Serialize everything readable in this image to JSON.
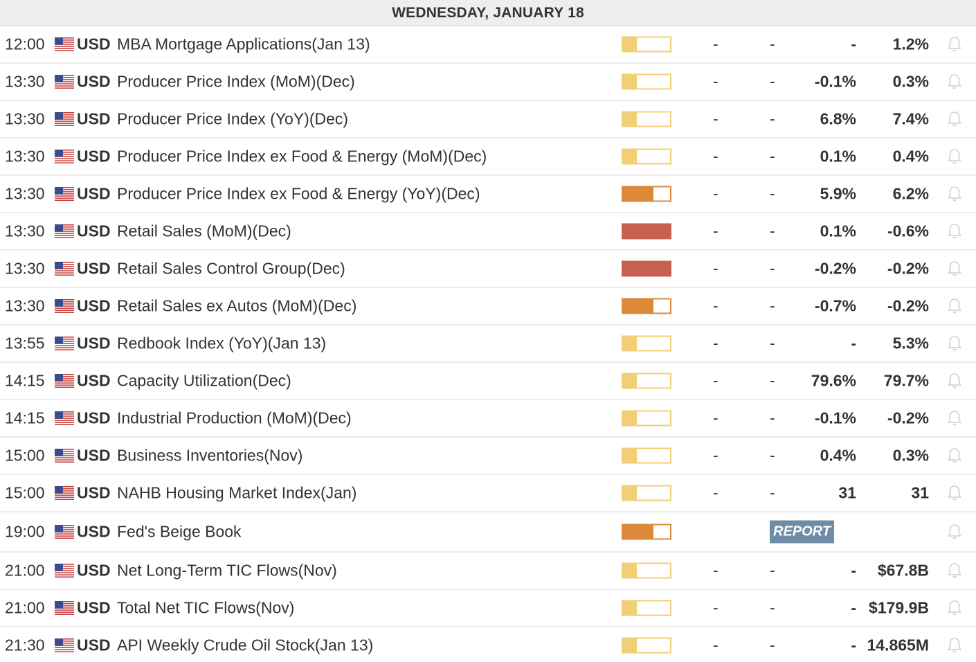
{
  "header": {
    "date": "WEDNESDAY, JANUARY 18"
  },
  "colors": {
    "low": "#f2cf76",
    "medium": "#dc8a3a",
    "high": "#c8604f",
    "report": "#6f8ca7"
  },
  "events": [
    {
      "time": "12:00",
      "currency": "USD",
      "event": "MBA Mortgage Applications(Jan 13)",
      "impact": "low",
      "actual": "-",
      "forecast": "-",
      "previous": "-",
      "prior": "1.2%"
    },
    {
      "time": "13:30",
      "currency": "USD",
      "event": "Producer Price Index (MoM)(Dec)",
      "impact": "low",
      "actual": "-",
      "forecast": "-",
      "previous": "-0.1%",
      "prior": "0.3%"
    },
    {
      "time": "13:30",
      "currency": "USD",
      "event": "Producer Price Index (YoY)(Dec)",
      "impact": "low",
      "actual": "-",
      "forecast": "-",
      "previous": "6.8%",
      "prior": "7.4%"
    },
    {
      "time": "13:30",
      "currency": "USD",
      "event": "Producer Price Index ex Food & Energy (MoM)(Dec)",
      "impact": "low",
      "actual": "-",
      "forecast": "-",
      "previous": "0.1%",
      "prior": "0.4%"
    },
    {
      "time": "13:30",
      "currency": "USD",
      "event": "Producer Price Index ex Food & Energy (YoY)(Dec)",
      "impact": "medium",
      "actual": "-",
      "forecast": "-",
      "previous": "5.9%",
      "prior": "6.2%"
    },
    {
      "time": "13:30",
      "currency": "USD",
      "event": "Retail Sales (MoM)(Dec)",
      "impact": "high",
      "actual": "-",
      "forecast": "-",
      "previous": "0.1%",
      "prior": "-0.6%"
    },
    {
      "time": "13:30",
      "currency": "USD",
      "event": "Retail Sales Control Group(Dec)",
      "impact": "high",
      "actual": "-",
      "forecast": "-",
      "previous": "-0.2%",
      "prior": "-0.2%"
    },
    {
      "time": "13:30",
      "currency": "USD",
      "event": "Retail Sales ex Autos (MoM)(Dec)",
      "impact": "medium",
      "actual": "-",
      "forecast": "-",
      "previous": "-0.7%",
      "prior": "-0.2%"
    },
    {
      "time": "13:55",
      "currency": "USD",
      "event": "Redbook Index (YoY)(Jan 13)",
      "impact": "low",
      "actual": "-",
      "forecast": "-",
      "previous": "-",
      "prior": "5.3%"
    },
    {
      "time": "14:15",
      "currency": "USD",
      "event": "Capacity Utilization(Dec)",
      "impact": "low",
      "actual": "-",
      "forecast": "-",
      "previous": "79.6%",
      "prior": "79.7%"
    },
    {
      "time": "14:15",
      "currency": "USD",
      "event": "Industrial Production (MoM)(Dec)",
      "impact": "low",
      "actual": "-",
      "forecast": "-",
      "previous": "-0.1%",
      "prior": "-0.2%"
    },
    {
      "time": "15:00",
      "currency": "USD",
      "event": "Business Inventories(Nov)",
      "impact": "low",
      "actual": "-",
      "forecast": "-",
      "previous": "0.4%",
      "prior": "0.3%"
    },
    {
      "time": "15:00",
      "currency": "USD",
      "event": "NAHB Housing Market Index(Jan)",
      "impact": "low",
      "actual": "-",
      "forecast": "-",
      "previous": "31",
      "prior": "31"
    },
    {
      "time": "19:00",
      "currency": "USD",
      "event": "Fed's Beige Book",
      "impact": "medium",
      "report": "REPORT"
    },
    {
      "time": "21:00",
      "currency": "USD",
      "event": "Net Long-Term TIC Flows(Nov)",
      "impact": "low",
      "actual": "-",
      "forecast": "-",
      "previous": "-",
      "prior": "$67.8B"
    },
    {
      "time": "21:00",
      "currency": "USD",
      "event": "Total Net TIC Flows(Nov)",
      "impact": "low",
      "actual": "-",
      "forecast": "-",
      "previous": "-",
      "prior": "$179.9B"
    },
    {
      "time": "21:30",
      "currency": "USD",
      "event": "API Weekly Crude Oil Stock(Jan 13)",
      "impact": "low",
      "actual": "-",
      "forecast": "-",
      "previous": "-",
      "prior": "14.865M"
    }
  ]
}
